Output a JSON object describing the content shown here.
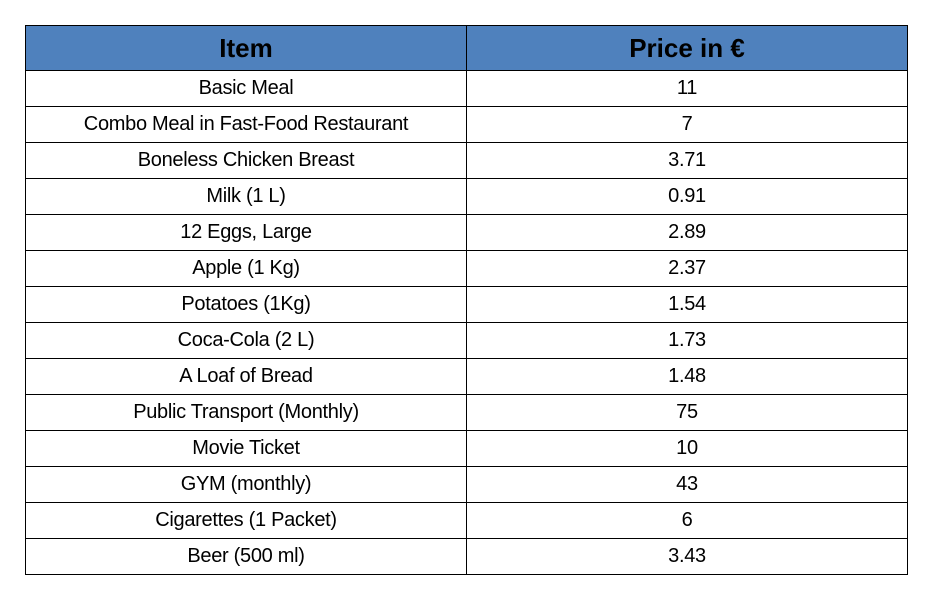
{
  "table": {
    "columns": [
      "Item",
      "Price in €"
    ],
    "rows": [
      [
        "Basic Meal",
        11
      ],
      [
        "Combo Meal in Fast-Food Restaurant",
        7
      ],
      [
        "Boneless Chicken Breast",
        3.71
      ],
      [
        "Milk (1 L)",
        0.91
      ],
      [
        "12 Eggs, Large",
        2.89
      ],
      [
        "Apple (1 Kg)",
        2.37
      ],
      [
        "Potatoes (1Kg)",
        1.54
      ],
      [
        "Coca-Cola (2 L)",
        1.73
      ],
      [
        "A Loaf of Bread",
        1.48
      ],
      [
        "Public Transport (Monthly)",
        75
      ],
      [
        "Movie Ticket",
        10
      ],
      [
        "GYM (monthly)",
        43
      ],
      [
        "Cigarettes (1 Packet)",
        6
      ],
      [
        "Beer (500 ml)",
        3.43
      ]
    ]
  }
}
